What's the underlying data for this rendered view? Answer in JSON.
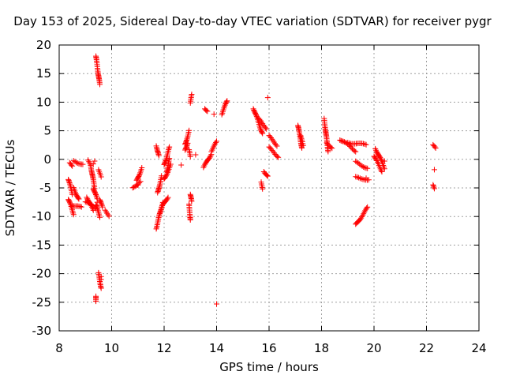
{
  "chart_data": {
    "type": "scatter",
    "title": "Day 153 of 2025, Sidereal Day-to-day VTEC variation (SDTVAR) for receiver pygr",
    "xlabel": "GPS time / hours",
    "ylabel": "SDTVAR / TECUs",
    "xlim": [
      8,
      24
    ],
    "ylim": [
      -30,
      20
    ],
    "xticks": [
      8,
      10,
      12,
      14,
      16,
      18,
      20,
      22,
      24
    ],
    "yticks": [
      -30,
      -25,
      -20,
      -15,
      -10,
      -5,
      0,
      5,
      10,
      15,
      20
    ],
    "grid": true,
    "marker": "+",
    "color": "#ff0000",
    "series": [
      {
        "name": "SDTVAR",
        "segments": [
          [
            8.35,
            -3.5,
            8.5,
            -6.0
          ],
          [
            8.35,
            -7.0,
            8.55,
            -9.5
          ],
          [
            8.4,
            -0.5,
            8.5,
            -1.0
          ],
          [
            8.5,
            -8.0,
            8.85,
            -8.5
          ],
          [
            8.55,
            -5.0,
            8.75,
            -7.0
          ],
          [
            8.55,
            -0.3,
            8.9,
            -0.8
          ],
          [
            9.0,
            -7.5,
            9.4,
            -8.5
          ],
          [
            9.05,
            -6.5,
            9.3,
            -9.0
          ],
          [
            9.1,
            -0.3,
            9.2,
            -1.0
          ],
          [
            9.2,
            -1.0,
            9.35,
            -5.0
          ],
          [
            9.3,
            -5.0,
            9.45,
            -7.0
          ],
          [
            9.4,
            -8.0,
            9.55,
            -10.0
          ],
          [
            9.4,
            18.0,
            9.55,
            13.0
          ],
          [
            9.4,
            -24.0,
            9.4,
            -25.0
          ],
          [
            9.5,
            -20.0,
            9.6,
            -22.5
          ],
          [
            9.5,
            -2.0,
            9.6,
            -3.0
          ],
          [
            9.55,
            -7.0,
            9.65,
            -8.5
          ],
          [
            9.75,
            -9.0,
            9.9,
            -9.8
          ],
          [
            10.8,
            -5.0,
            11.1,
            -3.8
          ],
          [
            10.95,
            -3.8,
            11.15,
            -1.5
          ],
          [
            11.7,
            -12.0,
            11.95,
            -7.5
          ],
          [
            11.75,
            -6.0,
            11.9,
            -3.0
          ],
          [
            11.7,
            2.5,
            11.8,
            0.5
          ],
          [
            11.9,
            -8.5,
            12.15,
            -6.5
          ],
          [
            12.0,
            -3.5,
            12.25,
            -1.0
          ],
          [
            12.0,
            -1.0,
            12.2,
            2.0
          ],
          [
            12.1,
            -2.0,
            12.2,
            0.0
          ],
          [
            12.8,
            1.5,
            12.9,
            3.0
          ],
          [
            12.8,
            2.5,
            12.95,
            5.0
          ],
          [
            12.95,
            1.5,
            13.0,
            0.5
          ],
          [
            12.95,
            -8.0,
            13.0,
            -10.5
          ],
          [
            13.0,
            -6.0,
            13.05,
            -7.5
          ],
          [
            13.0,
            10.0,
            13.05,
            11.2
          ],
          [
            13.5,
            -1.5,
            13.8,
            1.0
          ],
          [
            13.55,
            9.0,
            13.65,
            8.5
          ],
          [
            13.8,
            1.5,
            14.0,
            3.0
          ],
          [
            14.2,
            8.0,
            14.4,
            10.2
          ],
          [
            15.4,
            9.0,
            15.75,
            4.5
          ],
          [
            15.6,
            7.0,
            15.9,
            5.5
          ],
          [
            15.8,
            -2.0,
            15.95,
            -3.0
          ],
          [
            15.7,
            -4.0,
            15.75,
            -5.0
          ],
          [
            16.0,
            2.0,
            16.35,
            0.5
          ],
          [
            16.0,
            4.0,
            16.3,
            2.5
          ],
          [
            17.1,
            6.0,
            17.25,
            2.0
          ],
          [
            17.2,
            4.0,
            17.3,
            2.5
          ],
          [
            18.1,
            7.0,
            18.25,
            1.5
          ],
          [
            18.2,
            3.0,
            18.4,
            2.0
          ],
          [
            18.7,
            3.5,
            19.3,
            1.5
          ],
          [
            19.0,
            3.0,
            19.7,
            2.5
          ],
          [
            19.3,
            -0.5,
            19.75,
            -1.5
          ],
          [
            19.3,
            -3.2,
            19.8,
            -3.5
          ],
          [
            19.3,
            -11.5,
            19.75,
            -8.5
          ],
          [
            20.05,
            2.0,
            20.4,
            -1.5
          ],
          [
            20.0,
            0.5,
            20.3,
            -2.0
          ],
          [
            22.25,
            2.5,
            22.35,
            1.8
          ],
          [
            22.25,
            -4.5,
            22.3,
            -5.3
          ]
        ],
        "points": [
          [
            9.35,
            -0.3
          ],
          [
            9.3,
            -0.8
          ],
          [
            9.45,
            -7.5
          ],
          [
            9.6,
            -21.0
          ],
          [
            9.6,
            -20.5
          ],
          [
            11.0,
            -4.5
          ],
          [
            12.65,
            -1.0
          ],
          [
            13.2,
            0.8
          ],
          [
            13.9,
            7.9
          ],
          [
            14.0,
            -25.3
          ],
          [
            15.95,
            10.8
          ],
          [
            22.3,
            -1.8
          ],
          [
            20.4,
            -0.3
          ],
          [
            19.7,
            -3.3
          ]
        ]
      }
    ]
  }
}
